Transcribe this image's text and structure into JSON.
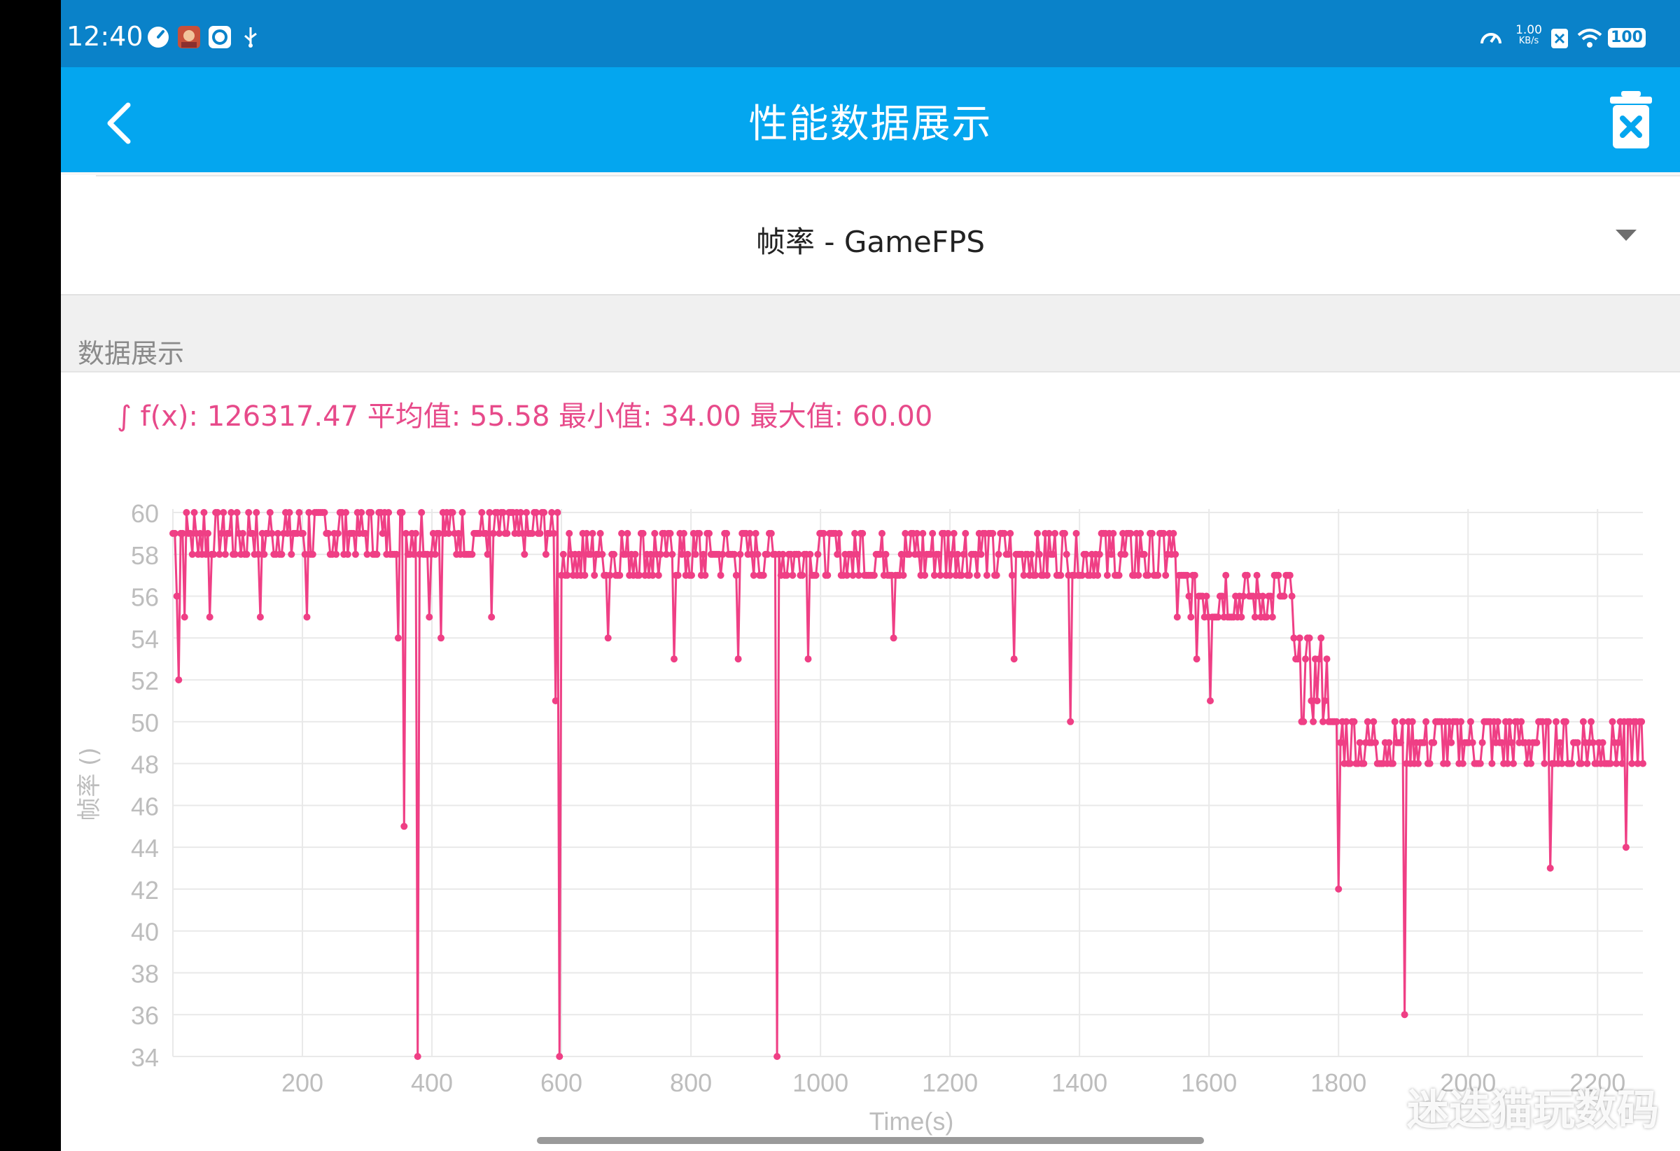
{
  "status_bar": {
    "time": "12:40",
    "net_speed_value": "1.00",
    "net_speed_unit": "KB/s",
    "battery": "100",
    "icons": [
      "speedometer-icon",
      "game-avatar-icon",
      "app-icon",
      "usb-icon",
      "data-speed-icon",
      "close-notification-icon",
      "wifi-icon",
      "battery-icon"
    ]
  },
  "app_bar": {
    "title": "性能数据展示",
    "back_icon": "chevron-left-icon",
    "delete_icon": "trash-clear-icon"
  },
  "metric_selector": {
    "label": "帧率 - GameFPS",
    "caret_icon": "dropdown-caret-icon"
  },
  "section": {
    "label": "数据展示"
  },
  "stats": {
    "text": "∫ f(x): 126317.47 平均值: 55.58 最小值: 34.00 最大值: 60.00"
  },
  "colors": {
    "status_bar": "#0a82c9",
    "app_bar": "#04a6ef",
    "series": "#ef3f85",
    "stats_text": "#e74a8a",
    "grid": "#e9e9e9",
    "axis_text": "#bdbdbd"
  },
  "chart_data": {
    "type": "line",
    "title": "",
    "xlabel": "Time(s)",
    "ylabel": "帧率 ()",
    "xlim": [
      0,
      2270
    ],
    "ylim": [
      34,
      60
    ],
    "x_ticks": [
      "200",
      "400",
      "600",
      "800",
      "1000",
      "1200",
      "1400",
      "1600",
      "1800",
      "2000",
      "2200"
    ],
    "y_ticks": [
      "60",
      "58",
      "56",
      "54",
      "52",
      "50",
      "48",
      "46",
      "44",
      "42",
      "40",
      "38",
      "36",
      "34"
    ],
    "grid": true,
    "markers": true,
    "series": [
      {
        "name": "",
        "segments": [
          {
            "x": [
              0,
              180
            ],
            "min": 58,
            "max": 60
          },
          {
            "x": [
              180,
              595
            ],
            "min": 58,
            "max": 60
          },
          {
            "x": [
              595,
              1100
            ],
            "min": 57,
            "max": 59
          },
          {
            "x": [
              1100,
              1550
            ],
            "min": 57,
            "max": 59
          },
          {
            "x": [
              1550,
              1730
            ],
            "min": 55,
            "max": 57
          },
          {
            "x": [
              1730,
              1790
            ],
            "min": 50,
            "max": 54
          },
          {
            "x": [
              1790,
              2270
            ],
            "min": 48,
            "max": 50
          }
        ],
        "dips": [
          {
            "x": 5,
            "y": 56
          },
          {
            "x": 8,
            "y": 50
          },
          {
            "x": 10,
            "y": 52
          },
          {
            "x": 18,
            "y": 55
          },
          {
            "x": 58,
            "y": 55
          },
          {
            "x": 135,
            "y": 55
          },
          {
            "x": 208,
            "y": 55
          },
          {
            "x": 348,
            "y": 54
          },
          {
            "x": 358,
            "y": 45
          },
          {
            "x": 378,
            "y": 34
          },
          {
            "x": 395,
            "y": 55
          },
          {
            "x": 413,
            "y": 54
          },
          {
            "x": 493,
            "y": 55
          },
          {
            "x": 590,
            "y": 51
          },
          {
            "x": 598,
            "y": 34
          },
          {
            "x": 672,
            "y": 54
          },
          {
            "x": 774,
            "y": 53
          },
          {
            "x": 873,
            "y": 53
          },
          {
            "x": 933,
            "y": 34
          },
          {
            "x": 980,
            "y": 53
          },
          {
            "x": 1112,
            "y": 54
          },
          {
            "x": 1298,
            "y": 53
          },
          {
            "x": 1385,
            "y": 50
          },
          {
            "x": 1580,
            "y": 53
          },
          {
            "x": 1602,
            "y": 51
          },
          {
            "x": 1800,
            "y": 42
          },
          {
            "x": 1903,
            "y": 36
          },
          {
            "x": 2127,
            "y": 43
          },
          {
            "x": 2243,
            "y": 44
          }
        ],
        "end_value": 48
      }
    ]
  },
  "watermark": "迷迭猫玩数码"
}
